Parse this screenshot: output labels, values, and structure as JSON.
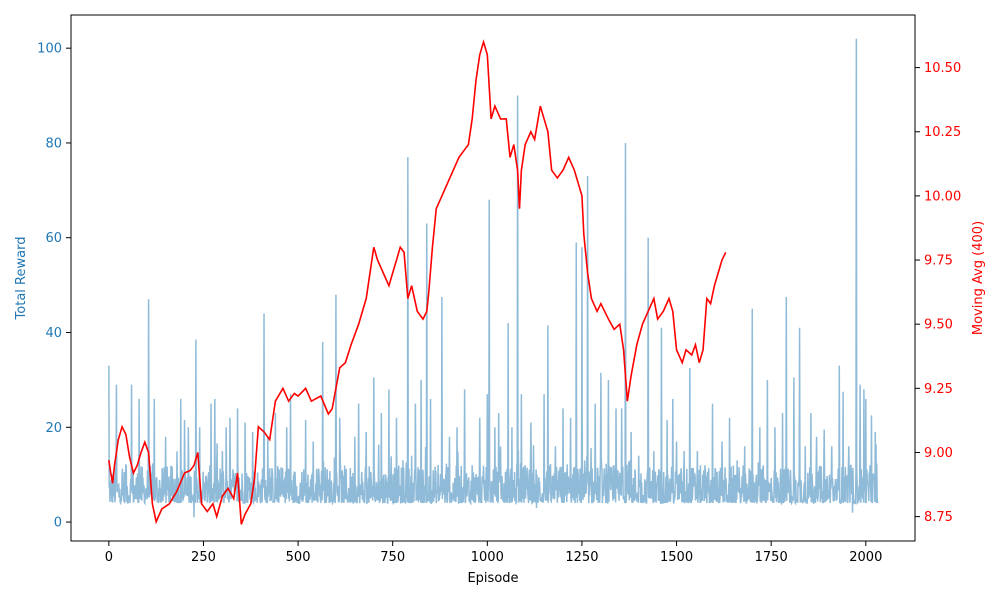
{
  "chart_data": {
    "type": "line",
    "xlabel": "Episode",
    "ylabel_left": "Total Reward",
    "ylabel_right": "Moving Avg (400)",
    "xlim": [
      -100,
      2130
    ],
    "ylim_left": [
      -4,
      107
    ],
    "ylim_right": [
      8.655,
      10.705
    ],
    "x_ticks": [
      0,
      250,
      500,
      750,
      1000,
      1250,
      1500,
      1750,
      2000
    ],
    "x_tick_labels": [
      "0",
      "250",
      "500",
      "750",
      "1000",
      "1250",
      "1500",
      "1750",
      "2000"
    ],
    "y_left_ticks": [
      0,
      20,
      40,
      60,
      80,
      100
    ],
    "y_left_tick_labels": [
      "0",
      "20",
      "40",
      "60",
      "80",
      "100"
    ],
    "y_right_ticks": [
      8.75,
      9.0,
      9.25,
      9.5,
      9.75,
      10.0,
      10.25,
      10.5
    ],
    "y_right_tick_labels": [
      "8.75",
      "9.00",
      "9.25",
      "9.50",
      "9.75",
      "10.00",
      "10.25",
      "10.50"
    ],
    "grid": false,
    "colors": {
      "reward": "#1f77b4",
      "moving_avg": "#ff0000",
      "left_axis_text": "#1f77b4",
      "right_axis_text": "#ff0000"
    },
    "series": [
      {
        "axis": "left",
        "x_start": 0,
        "x_end": 2031,
        "baseline_range": [
          4,
          12
        ],
        "spikes": [
          [
            0,
            33
          ],
          [
            12,
            10
          ],
          [
            20,
            29
          ],
          [
            45,
            12
          ],
          [
            60,
            29
          ],
          [
            80,
            26
          ],
          [
            105,
            47
          ],
          [
            120,
            26
          ],
          [
            150,
            18
          ],
          [
            190,
            26
          ],
          [
            200,
            21.5
          ],
          [
            210,
            20
          ],
          [
            225,
            1
          ],
          [
            230,
            38.5
          ],
          [
            240,
            20
          ],
          [
            270,
            25
          ],
          [
            280,
            26
          ],
          [
            300,
            15
          ],
          [
            310,
            20
          ],
          [
            320,
            22
          ],
          [
            340,
            24
          ],
          [
            360,
            21
          ],
          [
            380,
            19
          ],
          [
            410,
            44
          ],
          [
            420,
            18
          ],
          [
            440,
            23
          ],
          [
            470,
            20
          ],
          [
            480,
            27
          ],
          [
            520,
            21.5
          ],
          [
            540,
            17
          ],
          [
            565,
            38
          ],
          [
            600,
            48
          ],
          [
            610,
            22
          ],
          [
            650,
            18
          ],
          [
            660,
            25
          ],
          [
            680,
            19
          ],
          [
            700,
            30.5
          ],
          [
            720,
            23
          ],
          [
            740,
            28
          ],
          [
            760,
            22
          ],
          [
            790,
            77
          ],
          [
            800,
            14
          ],
          [
            810,
            25
          ],
          [
            825,
            30
          ],
          [
            840,
            63
          ],
          [
            850,
            26
          ],
          [
            870,
            12
          ],
          [
            880,
            47.5
          ],
          [
            900,
            18
          ],
          [
            920,
            20
          ],
          [
            940,
            28
          ],
          [
            960,
            12
          ],
          [
            980,
            22
          ],
          [
            1000,
            27
          ],
          [
            1005,
            68
          ],
          [
            1020,
            20
          ],
          [
            1030,
            23
          ],
          [
            1055,
            42
          ],
          [
            1065,
            20
          ],
          [
            1080,
            90
          ],
          [
            1090,
            27
          ],
          [
            1100,
            12
          ],
          [
            1115,
            21
          ],
          [
            1130,
            3
          ],
          [
            1150,
            27
          ],
          [
            1160,
            41.5
          ],
          [
            1180,
            16
          ],
          [
            1200,
            24
          ],
          [
            1220,
            22
          ],
          [
            1235,
            59
          ],
          [
            1250,
            58
          ],
          [
            1265,
            73
          ],
          [
            1285,
            25
          ],
          [
            1300,
            31.5
          ],
          [
            1320,
            30
          ],
          [
            1340,
            24
          ],
          [
            1355,
            24
          ],
          [
            1365,
            80
          ],
          [
            1380,
            19
          ],
          [
            1400,
            14
          ],
          [
            1425,
            60
          ],
          [
            1440,
            15
          ],
          [
            1460,
            41
          ],
          [
            1475,
            21.5
          ],
          [
            1490,
            26
          ],
          [
            1500,
            17
          ],
          [
            1520,
            15
          ],
          [
            1535,
            32.5
          ],
          [
            1555,
            15
          ],
          [
            1575,
            12
          ],
          [
            1595,
            25
          ],
          [
            1620,
            17
          ],
          [
            1640,
            22
          ],
          [
            1660,
            13
          ],
          [
            1680,
            16
          ],
          [
            1700,
            45
          ],
          [
            1720,
            20
          ],
          [
            1740,
            30
          ],
          [
            1760,
            20
          ],
          [
            1780,
            23
          ],
          [
            1790,
            47.5
          ],
          [
            1810,
            30.5
          ],
          [
            1825,
            41
          ],
          [
            1840,
            16
          ],
          [
            1855,
            23
          ],
          [
            1870,
            18
          ],
          [
            1890,
            19.5
          ],
          [
            1910,
            16
          ],
          [
            1930,
            33
          ],
          [
            1940,
            27.5
          ],
          [
            1955,
            16
          ],
          [
            1965,
            2
          ],
          [
            1975,
            102
          ],
          [
            1985,
            29
          ],
          [
            1995,
            28
          ],
          [
            2000,
            26
          ],
          [
            2015,
            22.5
          ],
          [
            2025,
            19
          ]
        ]
      },
      {
        "axis": "right",
        "points": [
          [
            0,
            8.97
          ],
          [
            5,
            8.92
          ],
          [
            10,
            8.88
          ],
          [
            15,
            8.95
          ],
          [
            25,
            9.05
          ],
          [
            35,
            9.1
          ],
          [
            45,
            9.07
          ],
          [
            55,
            8.98
          ],
          [
            65,
            8.92
          ],
          [
            75,
            8.95
          ],
          [
            85,
            9.0
          ],
          [
            95,
            9.04
          ],
          [
            105,
            9.0
          ],
          [
            115,
            8.8
          ],
          [
            125,
            8.73
          ],
          [
            140,
            8.78
          ],
          [
            160,
            8.8
          ],
          [
            180,
            8.85
          ],
          [
            200,
            8.92
          ],
          [
            215,
            8.93
          ],
          [
            225,
            8.95
          ],
          [
            235,
            9.0
          ],
          [
            245,
            8.8
          ],
          [
            260,
            8.77
          ],
          [
            275,
            8.8
          ],
          [
            285,
            8.75
          ],
          [
            300,
            8.83
          ],
          [
            315,
            8.86
          ],
          [
            330,
            8.82
          ],
          [
            340,
            8.92
          ],
          [
            350,
            8.72
          ],
          [
            360,
            8.76
          ],
          [
            375,
            8.8
          ],
          [
            385,
            8.9
          ],
          [
            395,
            9.1
          ],
          [
            410,
            9.08
          ],
          [
            425,
            9.05
          ],
          [
            440,
            9.2
          ],
          [
            460,
            9.25
          ],
          [
            475,
            9.2
          ],
          [
            490,
            9.23
          ],
          [
            500,
            9.22
          ],
          [
            520,
            9.25
          ],
          [
            535,
            9.2
          ],
          [
            560,
            9.22
          ],
          [
            580,
            9.15
          ],
          [
            590,
            9.17
          ],
          [
            600,
            9.25
          ],
          [
            610,
            9.33
          ],
          [
            625,
            9.35
          ],
          [
            640,
            9.42
          ],
          [
            660,
            9.5
          ],
          [
            680,
            9.6
          ],
          [
            690,
            9.7
          ],
          [
            700,
            9.8
          ],
          [
            710,
            9.75
          ],
          [
            725,
            9.7
          ],
          [
            740,
            9.65
          ],
          [
            750,
            9.7
          ],
          [
            760,
            9.75
          ],
          [
            770,
            9.8
          ],
          [
            780,
            9.78
          ],
          [
            790,
            9.6
          ],
          [
            800,
            9.65
          ],
          [
            815,
            9.55
          ],
          [
            830,
            9.52
          ],
          [
            840,
            9.55
          ],
          [
            845,
            9.62
          ],
          [
            855,
            9.8
          ],
          [
            865,
            9.95
          ],
          [
            880,
            10.0
          ],
          [
            895,
            10.05
          ],
          [
            910,
            10.1
          ],
          [
            925,
            10.15
          ],
          [
            940,
            10.18
          ],
          [
            950,
            10.2
          ],
          [
            960,
            10.3
          ],
          [
            970,
            10.45
          ],
          [
            980,
            10.55
          ],
          [
            990,
            10.6
          ],
          [
            1000,
            10.55
          ],
          [
            1010,
            10.3
          ],
          [
            1020,
            10.35
          ],
          [
            1035,
            10.3
          ],
          [
            1050,
            10.3
          ],
          [
            1060,
            10.15
          ],
          [
            1070,
            10.2
          ],
          [
            1080,
            10.1
          ],
          [
            1085,
            9.95
          ],
          [
            1090,
            10.1
          ],
          [
            1100,
            10.2
          ],
          [
            1115,
            10.25
          ],
          [
            1125,
            10.22
          ],
          [
            1140,
            10.35
          ],
          [
            1150,
            10.3
          ],
          [
            1160,
            10.25
          ],
          [
            1170,
            10.1
          ],
          [
            1185,
            10.07
          ],
          [
            1200,
            10.1
          ],
          [
            1215,
            10.15
          ],
          [
            1230,
            10.1
          ],
          [
            1240,
            10.05
          ],
          [
            1250,
            10.0
          ],
          [
            1255,
            9.85
          ],
          [
            1265,
            9.7
          ],
          [
            1275,
            9.6
          ],
          [
            1290,
            9.55
          ],
          [
            1300,
            9.58
          ],
          [
            1320,
            9.52
          ],
          [
            1335,
            9.48
          ],
          [
            1350,
            9.5
          ],
          [
            1360,
            9.4
          ],
          [
            1370,
            9.2
          ],
          [
            1380,
            9.3
          ],
          [
            1395,
            9.42
          ],
          [
            1410,
            9.5
          ],
          [
            1425,
            9.55
          ],
          [
            1440,
            9.6
          ],
          [
            1450,
            9.52
          ],
          [
            1465,
            9.55
          ],
          [
            1480,
            9.6
          ],
          [
            1490,
            9.55
          ],
          [
            1500,
            9.4
          ],
          [
            1515,
            9.35
          ],
          [
            1525,
            9.4
          ],
          [
            1540,
            9.38
          ],
          [
            1550,
            9.42
          ],
          [
            1560,
            9.35
          ],
          [
            1570,
            9.4
          ],
          [
            1580,
            9.6
          ],
          [
            1590,
            9.58
          ],
          [
            1600,
            9.65
          ],
          [
            1610,
            9.7
          ],
          [
            1620,
            9.75
          ],
          [
            1630,
            9.78
          ]
        ]
      }
    ]
  }
}
